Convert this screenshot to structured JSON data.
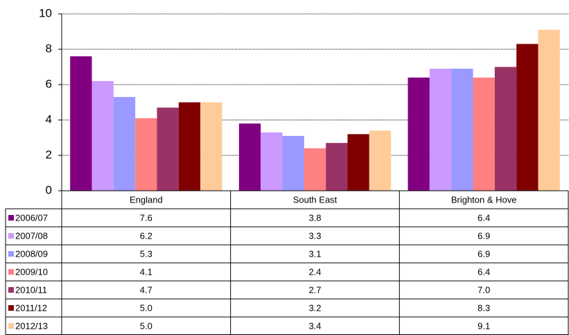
{
  "chart_data": {
    "type": "bar",
    "categories": [
      "England",
      "South East",
      "Brighton & Hove"
    ],
    "series": [
      {
        "name": "2006/07",
        "color": "#800080",
        "values": [
          7.6,
          3.8,
          6.4
        ],
        "value_labels": [
          "7.6",
          "3.8",
          "6.4"
        ]
      },
      {
        "name": "2007/08",
        "color": "#cc99ff",
        "values": [
          6.2,
          3.3,
          6.9
        ],
        "value_labels": [
          "6.2",
          "3.3",
          "6.9"
        ]
      },
      {
        "name": "2008/09",
        "color": "#9999ff",
        "values": [
          5.3,
          3.1,
          6.9
        ],
        "value_labels": [
          "5.3",
          "3.1",
          "6.9"
        ]
      },
      {
        "name": "2009/10",
        "color": "#ff8080",
        "values": [
          4.1,
          2.4,
          6.4
        ],
        "value_labels": [
          "4.1",
          "2.4",
          "6.4"
        ]
      },
      {
        "name": "2010/11",
        "color": "#993366",
        "values": [
          4.7,
          2.7,
          7.0
        ],
        "value_labels": [
          "4.7",
          "2.7",
          "7.0"
        ]
      },
      {
        "name": "2011/12",
        "color": "#800000",
        "values": [
          5.0,
          3.2,
          8.3
        ],
        "value_labels": [
          "5.0",
          "3.2",
          "8.3"
        ]
      },
      {
        "name": "2012/13",
        "color": "#ffcc99",
        "values": [
          5.0,
          3.4,
          9.1
        ],
        "value_labels": [
          "5.0",
          "3.4",
          "9.1"
        ]
      }
    ],
    "ylim": [
      0,
      10
    ],
    "yticks": [
      0,
      2,
      4,
      6,
      8,
      10
    ],
    "grid": true
  }
}
